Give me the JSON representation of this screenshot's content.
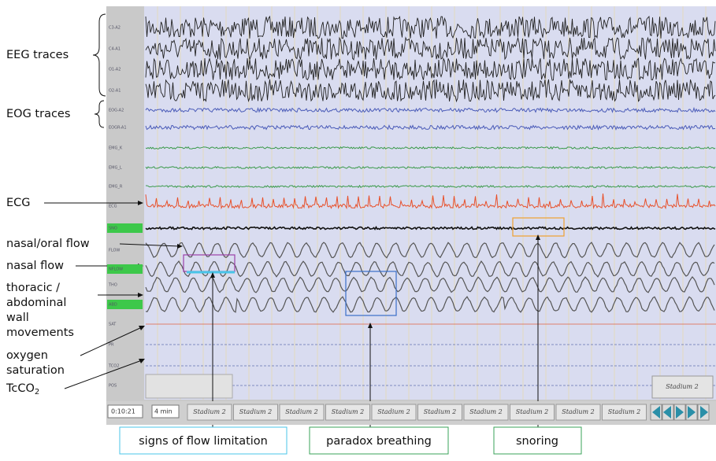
{
  "left_labels": {
    "eeg": "EEG traces",
    "eog": "EOG traces",
    "ecg": "ECG",
    "nasal_oral_flow": "nasal/oral flow",
    "nasal_flow": "nasal flow",
    "thoracic": [
      "thoracic /",
      "abdominal",
      "wall",
      "movements"
    ],
    "oxygen": [
      "oxygen",
      "saturation"
    ],
    "tcco2": {
      "text": "TcCO",
      "subscript": "2"
    }
  },
  "channels": [
    "C3-A2",
    "C4-A1",
    "O1-A2",
    "O2-A1",
    "EOG-A2",
    "EOGR-A1",
    "EMG_K",
    "EMG_L",
    "EMG_R",
    "ECG",
    "SNO",
    "FLOW",
    "NFLOW",
    "THO",
    "ABD",
    "SAT",
    "PR",
    "TCO2",
    "POS"
  ],
  "callouts": [
    "signs of flow limitation",
    "paradox breathing",
    "snoring"
  ],
  "status_bar": {
    "time": "0:10:21",
    "window": "4 min",
    "stages": [
      "Stadium 2",
      "Stadium 2",
      "Stadium 2",
      "Stadium 2",
      "Stadium 2",
      "Stadium 2",
      "Stadium 2",
      "Stadium 2",
      "Stadium 2",
      "Stadium 2"
    ],
    "stage_badge": "Stadium 2"
  }
}
